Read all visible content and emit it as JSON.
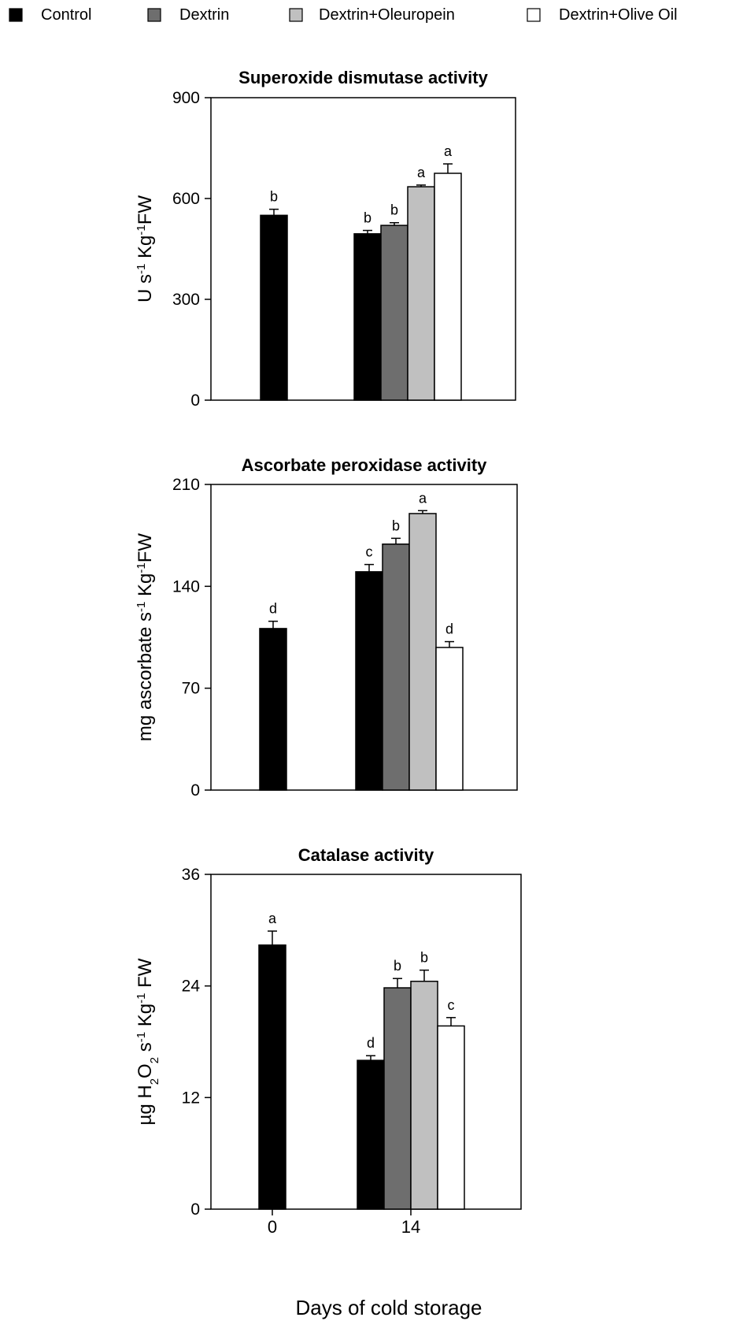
{
  "legend": [
    {
      "label": "Control",
      "color": "#000000"
    },
    {
      "label": "Dextrin",
      "color": "#6e6e6e"
    },
    {
      "label": "Dextrin+Oleuropein",
      "color": "#c0c0c0"
    },
    {
      "label": "Dextrin+Olive Oil",
      "color": "#ffffff"
    }
  ],
  "xlabel": "Days of cold storage",
  "chart_data": [
    {
      "type": "bar",
      "title": "Superoxide dismutase activity",
      "ylabel_parts": [
        {
          "t": "U s"
        },
        {
          "t": "-1",
          "sup": true
        },
        {
          "t": " Kg"
        },
        {
          "t": "-1",
          "sup": true
        },
        {
          "t": "FW"
        }
      ],
      "ylim": [
        0,
        900
      ],
      "yticks": [
        "0",
        "300",
        "600",
        "900"
      ],
      "categories": [
        "0",
        "14"
      ],
      "series": [
        {
          "name": "Control",
          "values": [
            550,
            495
          ],
          "errors": [
            18,
            10
          ],
          "letters": [
            "b",
            "b"
          ]
        },
        {
          "name": "Dextrin",
          "values": [
            null,
            520
          ],
          "errors": [
            null,
            8
          ],
          "letters": [
            null,
            "b"
          ]
        },
        {
          "name": "Dextrin+Oleuropein",
          "values": [
            null,
            635
          ],
          "errors": [
            null,
            5
          ],
          "letters": [
            null,
            "a"
          ]
        },
        {
          "name": "Dextrin+Olive Oil",
          "values": [
            null,
            675
          ],
          "errors": [
            null,
            28
          ],
          "letters": [
            null,
            "a"
          ]
        }
      ]
    },
    {
      "type": "bar",
      "title": "Ascorbate peroxidase activity",
      "ylabel_parts": [
        {
          "t": "mg ascorbate s"
        },
        {
          "t": "-1",
          "sup": true
        },
        {
          "t": " Kg"
        },
        {
          "t": "-1",
          "sup": true
        },
        {
          "t": "FW"
        }
      ],
      "ylim": [
        0,
        210
      ],
      "yticks": [
        "0",
        "70",
        "140",
        "210"
      ],
      "categories": [
        "0",
        "14"
      ],
      "series": [
        {
          "name": "Control",
          "values": [
            111,
            150
          ],
          "errors": [
            5,
            5
          ],
          "letters": [
            "d",
            "c"
          ]
        },
        {
          "name": "Dextrin",
          "values": [
            null,
            169
          ],
          "errors": [
            null,
            4
          ],
          "letters": [
            null,
            "b"
          ]
        },
        {
          "name": "Dextrin+Oleuropein",
          "values": [
            null,
            190
          ],
          "errors": [
            null,
            2
          ],
          "letters": [
            null,
            "a"
          ]
        },
        {
          "name": "Dextrin+Olive Oil",
          "values": [
            null,
            98
          ],
          "errors": [
            null,
            4
          ],
          "letters": [
            null,
            "d"
          ]
        }
      ]
    },
    {
      "type": "bar",
      "title": "Catalase activity",
      "ylabel_parts": [
        {
          "t": "µg H"
        },
        {
          "t": "2",
          "sub": true
        },
        {
          "t": "O"
        },
        {
          "t": "2",
          "sub": true
        },
        {
          "t": " s"
        },
        {
          "t": "-1",
          "sup": true
        },
        {
          "t": " Kg"
        },
        {
          "t": "-1",
          "sup": true
        },
        {
          "t": " FW"
        }
      ],
      "ylim": [
        0,
        36
      ],
      "yticks": [
        "0",
        "12",
        "24",
        "36"
      ],
      "categories": [
        "0",
        "14"
      ],
      "series": [
        {
          "name": "Control",
          "values": [
            28.4,
            16
          ],
          "errors": [
            1.5,
            0.5
          ],
          "letters": [
            "a",
            "d"
          ]
        },
        {
          "name": "Dextrin",
          "values": [
            null,
            23.8
          ],
          "errors": [
            null,
            1.0
          ],
          "letters": [
            null,
            "b"
          ]
        },
        {
          "name": "Dextrin+Oleuropein",
          "values": [
            null,
            24.5
          ],
          "errors": [
            null,
            1.2
          ],
          "letters": [
            null,
            "b"
          ]
        },
        {
          "name": "Dextrin+Olive Oil",
          "values": [
            null,
            19.7
          ],
          "errors": [
            null,
            0.9
          ],
          "letters": [
            null,
            "c"
          ]
        }
      ]
    }
  ]
}
